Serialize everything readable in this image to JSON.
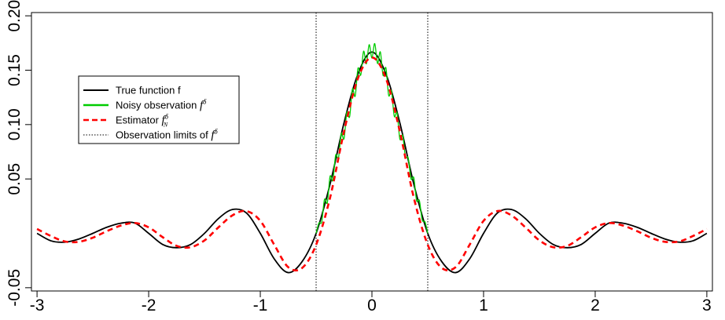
{
  "chart_data": {
    "type": "line",
    "title": "",
    "xlabel": "",
    "ylabel": "",
    "xlim": [
      -3.05,
      3.05
    ],
    "ylim": [
      -0.053,
      0.203
    ],
    "xticks": [
      -3,
      -2,
      -1,
      0,
      1,
      2,
      3
    ],
    "xtick_labels": [
      "-3",
      "-2",
      "-1",
      "0",
      "1",
      "2",
      "3"
    ],
    "yticks": [
      -0.05,
      0.05,
      0.1,
      0.15,
      0.2
    ],
    "ytick_labels": [
      "-0.05",
      "0.05",
      "0.10",
      "0.15",
      "0.20"
    ],
    "grid": false,
    "legend_position": "left",
    "legend": [
      {
        "label": "True function f",
        "math": "",
        "sub": "",
        "sup": "",
        "color": "#000000",
        "style": "solid"
      },
      {
        "label": "Noisy observation ",
        "math": "f",
        "sub": "",
        "sup": "δ",
        "color": "#00cc00",
        "style": "solid"
      },
      {
        "label": "Estimator ",
        "math": "f",
        "sub": "N",
        "sup": "δ",
        "color": "#ff0000",
        "style": "dashed"
      },
      {
        "label": "Observation limits of ",
        "math": "f",
        "sub": "",
        "sup": "δ",
        "color": "#000000",
        "style": "dotted"
      }
    ],
    "vlines": [
      -0.5,
      0.5
    ],
    "series": [
      {
        "name": "True function f",
        "color": "#000000",
        "style": "solid",
        "x": [
          -3.0,
          -2.875,
          -2.75,
          -2.625,
          -2.5,
          -2.375,
          -2.25,
          -2.125,
          -2.0,
          -1.875,
          -1.75,
          -1.625,
          -1.5,
          -1.375,
          -1.25,
          -1.125,
          -1.0,
          -0.875,
          -0.75,
          -0.625,
          -0.5,
          -0.375,
          -0.25,
          -0.125,
          0.0,
          0.125,
          0.25,
          0.375,
          0.5,
          0.625,
          0.75,
          0.875,
          1.0,
          1.125,
          1.25,
          1.375,
          1.5,
          1.625,
          1.75,
          1.875,
          2.0,
          2.125,
          2.25,
          2.375,
          2.5,
          2.625,
          2.75,
          2.875,
          3.0
        ],
        "y": [
          0.0,
          -0.0069,
          -0.0081,
          -0.0052,
          0.0,
          0.0056,
          0.0093,
          0.0095,
          0.0,
          -0.0102,
          -0.0132,
          -0.0103,
          0.0,
          0.0136,
          0.0219,
          0.0188,
          0.0,
          -0.0235,
          -0.0361,
          -0.0259,
          0.0,
          0.0453,
          0.1016,
          0.1466,
          0.1667,
          0.1466,
          0.1016,
          0.0453,
          0.0,
          -0.0259,
          -0.0361,
          -0.0235,
          0.0,
          0.0188,
          0.0219,
          0.0136,
          0.0,
          -0.0103,
          -0.0132,
          -0.0102,
          0.0,
          0.0095,
          0.0093,
          0.0056,
          0.0,
          -0.0052,
          -0.0081,
          -0.0069,
          0.0
        ]
      },
      {
        "name": "Noisy observation",
        "color": "#00cc00",
        "style": "solid",
        "x": [
          -0.5,
          -0.475,
          -0.45,
          -0.425,
          -0.4,
          -0.375,
          -0.35,
          -0.325,
          -0.3,
          -0.275,
          -0.25,
          -0.225,
          -0.2,
          -0.175,
          -0.15,
          -0.125,
          -0.1,
          -0.075,
          -0.05,
          -0.025,
          0.0,
          0.025,
          0.05,
          0.075,
          0.1,
          0.125,
          0.15,
          0.175,
          0.2,
          0.225,
          0.25,
          0.275,
          0.3,
          0.325,
          0.35,
          0.375,
          0.4,
          0.425,
          0.45,
          0.475,
          0.5
        ],
        "y": [
          0.0,
          0.0095,
          0.0105,
          0.0312,
          0.0281,
          0.0524,
          0.0487,
          0.0719,
          0.0692,
          0.0917,
          0.0871,
          0.1112,
          0.1072,
          0.1327,
          0.1262,
          0.1518,
          0.1456,
          0.1674,
          0.1559,
          0.1735,
          0.1612,
          0.1745,
          0.1562,
          0.1668,
          0.1451,
          0.1522,
          0.1268,
          0.1311,
          0.1077,
          0.1107,
          0.0867,
          0.0901,
          0.0706,
          0.0693,
          0.0501,
          0.0511,
          0.0301,
          0.0302,
          0.0124,
          0.0106,
          0.0
        ]
      },
      {
        "name": "Estimator",
        "color": "#ff0000",
        "style": "dashed",
        "x": [
          -3.0,
          -2.875,
          -2.75,
          -2.625,
          -2.5,
          -2.375,
          -2.25,
          -2.125,
          -2.0,
          -1.875,
          -1.75,
          -1.625,
          -1.5,
          -1.375,
          -1.25,
          -1.125,
          -1.0,
          -0.875,
          -0.75,
          -0.625,
          -0.5,
          -0.375,
          -0.25,
          -0.125,
          0.0,
          0.125,
          0.25,
          0.375,
          0.5,
          0.625,
          0.75,
          0.875,
          1.0,
          1.125,
          1.25,
          1.375,
          1.5,
          1.625,
          1.75,
          1.875,
          2.0,
          2.125,
          2.25,
          2.375,
          2.5,
          2.625,
          2.75,
          2.875,
          3.0
        ],
        "y": [
          0.004,
          -0.0025,
          -0.0075,
          -0.0078,
          -0.004,
          0.002,
          0.0071,
          0.0095,
          0.0055,
          -0.0035,
          -0.0115,
          -0.0128,
          -0.0065,
          0.0055,
          0.0165,
          0.0205,
          0.0115,
          -0.0105,
          -0.0311,
          -0.0318,
          -0.0105,
          0.0328,
          0.0936,
          0.1426,
          0.1617,
          0.1426,
          0.0936,
          0.0328,
          -0.0105,
          -0.0318,
          -0.0311,
          -0.0105,
          0.0115,
          0.0205,
          0.0165,
          0.0055,
          -0.0065,
          -0.0128,
          -0.0115,
          -0.0035,
          0.0055,
          0.0095,
          0.0071,
          0.002,
          -0.004,
          -0.0078,
          -0.0075,
          -0.0025,
          0.004
        ]
      }
    ]
  }
}
